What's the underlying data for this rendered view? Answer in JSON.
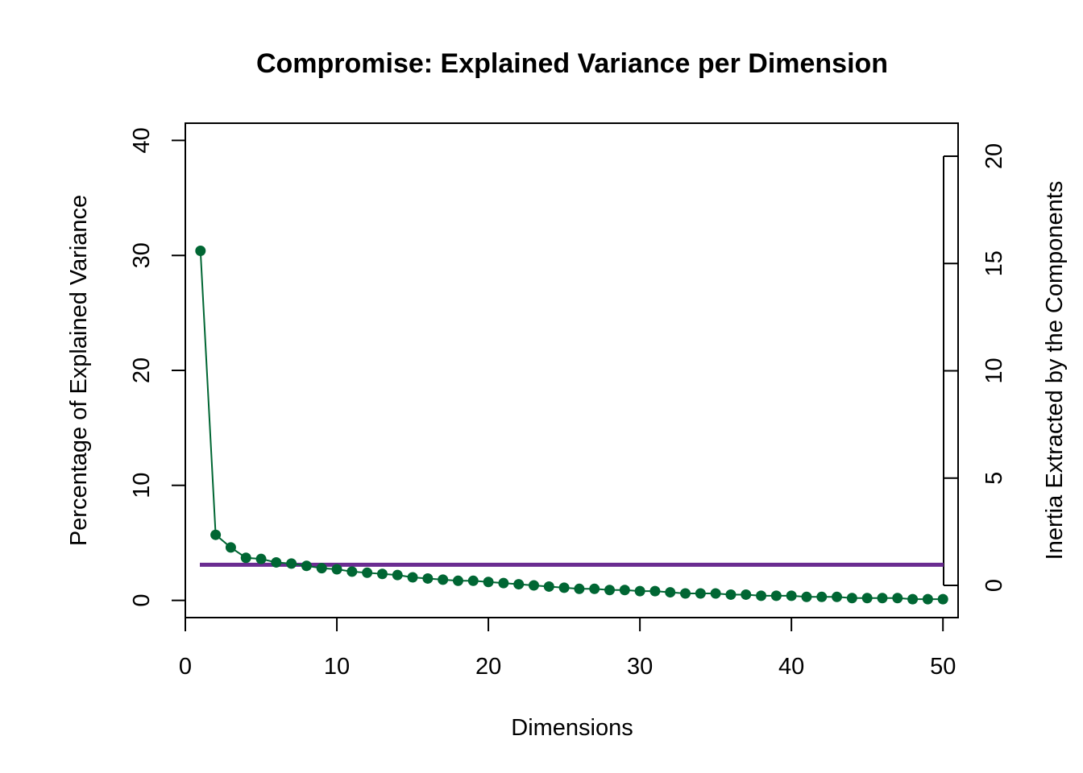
{
  "chart_data": {
    "type": "line",
    "title": "Compromise: Explained Variance per Dimension",
    "xlabel": "Dimensions",
    "ylabel": "Percentage of Explained Variance",
    "y2label": "Inertia Extracted by the Components",
    "xlim": [
      0,
      51
    ],
    "ylim": [
      -1.5,
      41.5
    ],
    "y2lim": [
      0,
      20
    ],
    "x_ticks": [
      0,
      10,
      20,
      30,
      40,
      50
    ],
    "y_ticks": [
      0,
      10,
      20,
      30,
      40
    ],
    "y2_ticks": [
      0,
      5,
      10,
      15,
      20
    ],
    "grid": false,
    "series": [
      {
        "color": "#006633",
        "x": [
          1,
          2,
          3,
          4,
          5,
          6,
          7,
          8,
          9,
          10,
          11,
          12,
          13,
          14,
          15,
          16,
          17,
          18,
          19,
          20,
          21,
          22,
          23,
          24,
          25,
          26,
          27,
          28,
          29,
          30,
          31,
          32,
          33,
          34,
          35,
          36,
          37,
          38,
          39,
          40,
          41,
          42,
          43,
          44,
          45,
          46,
          47,
          48,
          49,
          50
        ],
        "values": [
          30.4,
          5.7,
          4.6,
          3.7,
          3.6,
          3.3,
          3.2,
          3.0,
          2.8,
          2.7,
          2.5,
          2.4,
          2.3,
          2.2,
          2.0,
          1.9,
          1.8,
          1.7,
          1.7,
          1.6,
          1.5,
          1.4,
          1.3,
          1.2,
          1.1,
          1.0,
          1.0,
          0.9,
          0.9,
          0.8,
          0.8,
          0.7,
          0.6,
          0.6,
          0.6,
          0.5,
          0.5,
          0.4,
          0.4,
          0.4,
          0.3,
          0.3,
          0.3,
          0.2,
          0.2,
          0.2,
          0.2,
          0.1,
          0.1,
          0.1
        ]
      }
    ],
    "reference_line": {
      "value": 3.1,
      "color": "#6a2c91"
    }
  }
}
